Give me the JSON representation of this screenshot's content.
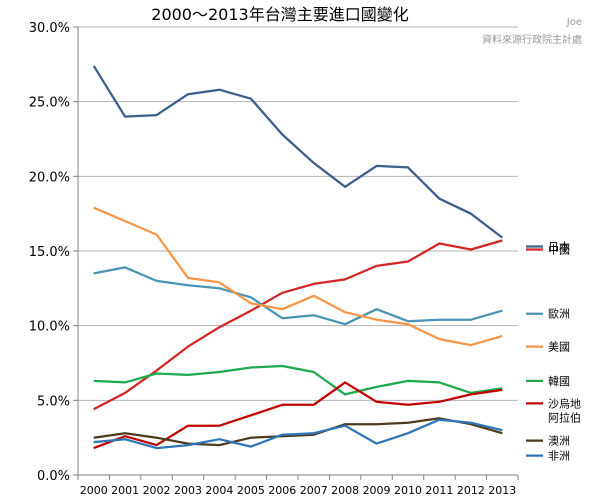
{
  "chart_data": {
    "type": "line",
    "title": "2000～2013年台灣主要進口國變化",
    "xlabel": "",
    "ylabel": "",
    "x": [
      2000,
      2001,
      2002,
      2003,
      2004,
      2005,
      2006,
      2007,
      2008,
      2009,
      2010,
      2011,
      2012,
      2013
    ],
    "ylim": [
      0,
      30
    ],
    "yticks": [
      "0.0%",
      "5.0%",
      "10.0%",
      "15.0%",
      "20.0%",
      "25.0%",
      "30.0%"
    ],
    "grid": true,
    "legend_position": "right",
    "annotations": [
      "Joe",
      "資料來源行政院主計處"
    ],
    "series": [
      {
        "name": "日本",
        "color": "#3C5E8C",
        "legend_y": 15.3,
        "values": [
          27.4,
          24.0,
          24.1,
          25.5,
          25.8,
          25.2,
          22.8,
          20.9,
          19.3,
          20.7,
          20.6,
          18.5,
          17.5,
          15.9
        ]
      },
      {
        "name": "中國",
        "color": "#D42424",
        "legend_y": 15.1,
        "values": [
          4.4,
          5.5,
          7.0,
          8.6,
          9.9,
          11.0,
          12.2,
          12.8,
          13.1,
          14.0,
          14.3,
          15.5,
          15.1,
          15.7
        ]
      },
      {
        "name": "歐洲",
        "color": "#4A94B6",
        "legend_y": 10.8,
        "values": [
          13.5,
          13.9,
          13.0,
          12.7,
          12.5,
          11.9,
          10.5,
          10.7,
          10.1,
          11.1,
          10.3,
          10.4,
          10.4,
          11.0
        ]
      },
      {
        "name": "美國",
        "color": "#F79646",
        "legend_y": 8.6,
        "values": [
          17.9,
          17.0,
          16.1,
          13.2,
          12.9,
          11.5,
          11.1,
          12.0,
          10.9,
          10.4,
          10.1,
          9.1,
          8.7,
          9.3
        ]
      },
      {
        "name": "韓國",
        "color": "#1DAA4E",
        "legend_y": 6.3,
        "values": [
          6.3,
          6.2,
          6.8,
          6.7,
          6.9,
          7.2,
          7.3,
          6.9,
          5.4,
          5.9,
          6.3,
          6.2,
          5.5,
          5.8
        ]
      },
      {
        "name": "沙烏地阿拉伯",
        "color": "#C00000",
        "legend_y": 4.8,
        "legend_lines": [
          "沙烏地",
          "阿拉伯"
        ],
        "values": [
          1.8,
          2.6,
          2.0,
          3.3,
          3.3,
          4.0,
          4.7,
          4.7,
          6.2,
          4.9,
          4.7,
          4.9,
          5.4,
          5.7
        ]
      },
      {
        "name": "澳洲",
        "color": "#4D3B1F",
        "legend_y": 2.3,
        "values": [
          2.5,
          2.8,
          2.5,
          2.1,
          2.0,
          2.5,
          2.6,
          2.7,
          3.4,
          3.4,
          3.5,
          3.8,
          3.4,
          2.8
        ]
      },
      {
        "name": "非洲",
        "color": "#2E75B6",
        "legend_y": 1.3,
        "values": [
          2.2,
          2.4,
          1.8,
          2.0,
          2.4,
          1.9,
          2.7,
          2.8,
          3.3,
          2.1,
          2.8,
          3.7,
          3.5,
          3.0
        ]
      }
    ]
  }
}
